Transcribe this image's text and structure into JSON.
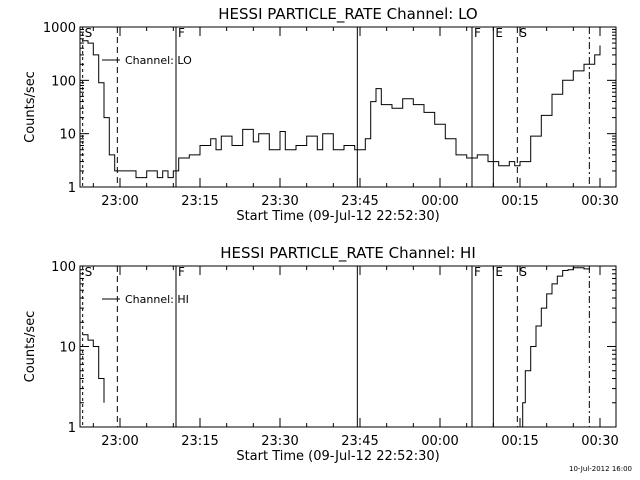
{
  "footer_stamp": "10-Jul-2012 16:00",
  "chart_data": [
    {
      "type": "line",
      "title": "HESSI PARTICLE_RATE Channel: LO",
      "xlabel": "Start Time (09-Jul-12 22:52:30)",
      "ylabel": "Counts/sec",
      "yscale": "log",
      "ylim": [
        1,
        1000
      ],
      "xlim": [
        "22:52:30",
        "00:33:00"
      ],
      "x_ticks": [
        "23:00",
        "23:15",
        "23:30",
        "23:45",
        "00:00",
        "00:15",
        "00:30"
      ],
      "y_ticks": [
        "1",
        "10",
        "100",
        "1000"
      ],
      "legend": {
        "placement": "top-left",
        "entries": [
          "Channel: LO"
        ]
      },
      "grid": false,
      "markers": [
        {
          "label": "S",
          "time": "22:53:00",
          "style": "dashed-short"
        },
        {
          "label": "",
          "time": "22:59:30",
          "style": "dashed"
        },
        {
          "label": "F",
          "time": "23:10:30",
          "style": "solid"
        },
        {
          "label": "",
          "time": "23:44:30",
          "style": "solid"
        },
        {
          "label": "F",
          "time": "00:06:00",
          "style": "solid"
        },
        {
          "label": "E",
          "time": "00:10:00",
          "style": "solid"
        },
        {
          "label": "S",
          "time": "00:14:30",
          "style": "dashed"
        },
        {
          "label": "",
          "time": "00:28:00",
          "style": "dash-dot"
        }
      ],
      "series": [
        {
          "name": "Channel: LO",
          "x": [
            "22:53:00",
            "22:54:00",
            "22:55:00",
            "22:56:00",
            "22:57:00",
            "22:58:00",
            "22:59:00",
            "23:00:00",
            "23:01:00",
            "23:02:00",
            "23:03:00",
            "23:04:00",
            "23:05:00",
            "23:06:00",
            "23:07:00",
            "23:08:00",
            "23:09:00",
            "23:10:00",
            "23:11:00",
            "23:13:00",
            "23:15:00",
            "23:17:00",
            "23:18:00",
            "23:19:00",
            "23:21:00",
            "23:23:00",
            "23:25:00",
            "23:26:00",
            "23:28:00",
            "23:30:00",
            "23:31:00",
            "23:33:00",
            "23:35:00",
            "23:37:00",
            "23:38:00",
            "23:40:00",
            "23:42:00",
            "23:44:00",
            "23:45:00",
            "23:46:00",
            "23:47:00",
            "23:48:00",
            "23:49:00",
            "23:51:00",
            "23:53:00",
            "23:55:00",
            "23:57:00",
            "23:59:00",
            "00:01:00",
            "00:03:00",
            "00:05:00",
            "00:07:00",
            "00:09:00",
            "00:10:00",
            "00:11:00",
            "00:12:00",
            "00:13:00",
            "00:14:00",
            "00:15:00",
            "00:17:00",
            "00:19:00",
            "00:21:00",
            "00:23:00",
            "00:25:00",
            "00:27:00",
            "00:29:00",
            "00:30:00"
          ],
          "y": [
            550,
            500,
            300,
            90,
            20,
            4,
            2,
            2,
            2,
            2,
            1.5,
            1.5,
            2,
            2,
            1.5,
            2,
            1.5,
            2,
            3.5,
            4,
            6,
            8,
            5,
            9,
            6,
            12,
            7,
            10,
            5,
            11,
            5,
            6,
            9,
            5,
            10,
            5,
            6,
            5,
            5,
            8,
            40,
            70,
            35,
            30,
            45,
            35,
            25,
            15,
            8,
            4,
            3.5,
            4,
            3,
            3,
            2.5,
            2.5,
            3,
            2.5,
            3,
            9,
            22,
            55,
            100,
            150,
            200,
            300,
            450
          ]
        }
      ]
    },
    {
      "type": "line",
      "title": "HESSI PARTICLE_RATE Channel: HI",
      "xlabel": "Start Time (09-Jul-12 22:52:30)",
      "ylabel": "Counts/sec",
      "yscale": "log",
      "ylim": [
        1,
        100
      ],
      "xlim": [
        "22:52:30",
        "00:33:00"
      ],
      "x_ticks": [
        "23:00",
        "23:15",
        "23:30",
        "23:45",
        "00:00",
        "00:15",
        "00:30"
      ],
      "y_ticks": [
        "1",
        "10",
        "100"
      ],
      "legend": {
        "placement": "top-left",
        "entries": [
          "Channel: HI"
        ]
      },
      "grid": false,
      "markers": [
        {
          "label": "S",
          "time": "22:53:00",
          "style": "dashed-short"
        },
        {
          "label": "",
          "time": "22:59:30",
          "style": "dashed"
        },
        {
          "label": "F",
          "time": "23:10:30",
          "style": "solid"
        },
        {
          "label": "",
          "time": "23:44:30",
          "style": "solid"
        },
        {
          "label": "F",
          "time": "00:06:00",
          "style": "solid"
        },
        {
          "label": "E",
          "time": "00:10:00",
          "style": "solid"
        },
        {
          "label": "S",
          "time": "00:14:30",
          "style": "dashed"
        },
        {
          "label": "",
          "time": "00:28:00",
          "style": "dash-dot"
        }
      ],
      "series": [
        {
          "name": "Channel: HI",
          "x": [
            "22:53:00",
            "22:54:00",
            "22:55:00",
            "22:56:00",
            "22:57:00"
          ],
          "y": [
            14,
            12,
            10,
            4,
            2
          ]
        },
        {
          "name": "Channel: HI",
          "x": [
            "00:15:00",
            "00:15:30",
            "00:16:00",
            "00:17:00",
            "00:18:00",
            "00:19:00",
            "00:20:00",
            "00:21:00",
            "00:22:00",
            "00:23:00",
            "00:24:00",
            "00:25:00",
            "00:26:00",
            "00:27:00",
            "00:28:00"
          ],
          "y": [
            1,
            2,
            5,
            10,
            18,
            30,
            45,
            60,
            75,
            88,
            90,
            95,
            95,
            92,
            90
          ]
        }
      ]
    }
  ]
}
